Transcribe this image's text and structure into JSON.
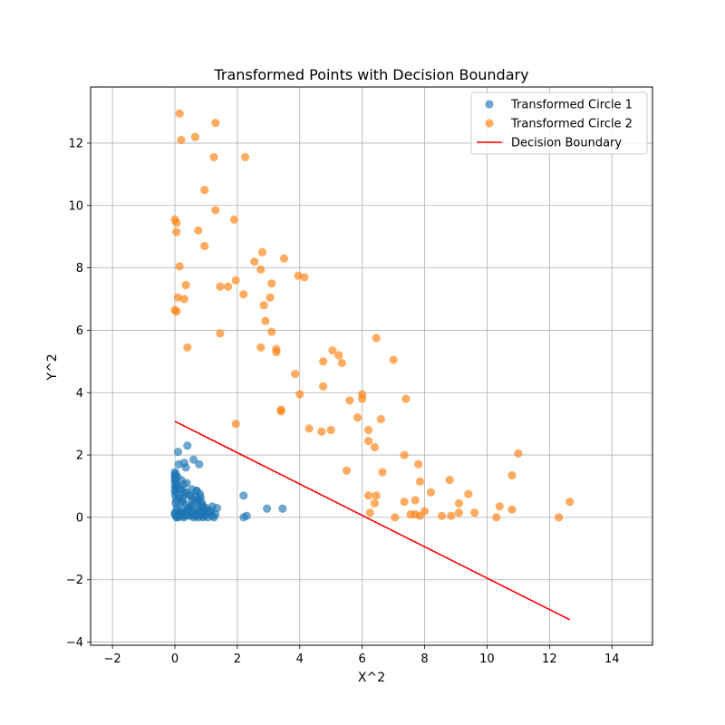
{
  "chart_data": {
    "type": "scatter",
    "title": "Transformed Points with Decision Boundary",
    "xlabel": "X^2",
    "ylabel": "Y^2",
    "xlim": [
      -2.7,
      15.3
    ],
    "ylim": [
      -4.1,
      13.8
    ],
    "xticks": [
      -2,
      0,
      2,
      4,
      6,
      8,
      10,
      12,
      14
    ],
    "yticks": [
      -4,
      -2,
      0,
      2,
      4,
      6,
      8,
      10,
      12
    ],
    "grid": true,
    "legend_position": "top-right",
    "series": [
      {
        "name": "Transformed Circle 1",
        "kind": "scatter",
        "color": "#1f77b4",
        "x": [
          0.0,
          0.0,
          0.02,
          0.0,
          0.03,
          0.05,
          0.0,
          0.01,
          0.04,
          0.02,
          0.06,
          0.08,
          0.0,
          0.03,
          0.05,
          0.1,
          0.12,
          0.15,
          0.18,
          0.2,
          0.22,
          0.25,
          0.28,
          0.3,
          0.33,
          0.35,
          0.38,
          0.4,
          0.42,
          0.45,
          0.48,
          0.5,
          0.55,
          0.6,
          0.62,
          0.65,
          0.7,
          0.72,
          0.75,
          0.8,
          0.82,
          0.85,
          0.9,
          0.92,
          0.95,
          1.0,
          1.05,
          1.1,
          1.15,
          1.2,
          1.25,
          1.3,
          1.35,
          0.15,
          0.2,
          0.25,
          0.3,
          0.35,
          0.4,
          0.45,
          0.5,
          0.55,
          0.6,
          0.65,
          0.7,
          0.75,
          0.8,
          0.85,
          0.9,
          0.95,
          1.0,
          0.1,
          0.12,
          0.08,
          0.05,
          0.02,
          0.3,
          0.35,
          0.28,
          0.4,
          0.6,
          0.7,
          0.75,
          0.78,
          0.82,
          0.88,
          0.15,
          0.2,
          0.48,
          0.55,
          0.38,
          0.65,
          0.8,
          0.25,
          0.1,
          0.45,
          0.18,
          0.3,
          0.5,
          0.7,
          0.9,
          1.1,
          1.2,
          2.2,
          2.3,
          2.2,
          2.95,
          3.45,
          0.02,
          0.0,
          0.01,
          0.0,
          0.03,
          0.0
        ],
        "y": [
          1.45,
          1.35,
          1.25,
          1.15,
          1.05,
          0.95,
          0.85,
          0.7,
          0.55,
          0.45,
          0.3,
          0.2,
          0.1,
          0.05,
          0.0,
          0.0,
          0.05,
          0.1,
          0.15,
          0.2,
          0.05,
          0.1,
          0.0,
          0.15,
          0.1,
          0.05,
          0.2,
          0.25,
          0.15,
          0.1,
          0.05,
          0.2,
          0.1,
          0.0,
          0.15,
          0.05,
          0.1,
          0.2,
          0.0,
          0.05,
          0.15,
          0.1,
          0.0,
          0.2,
          0.05,
          0.1,
          0.0,
          0.15,
          0.2,
          0.05,
          0.0,
          0.1,
          0.3,
          0.6,
          0.9,
          0.5,
          0.75,
          0.4,
          0.8,
          0.3,
          0.7,
          0.55,
          0.45,
          0.65,
          0.85,
          0.6,
          0.75,
          0.5,
          0.35,
          0.25,
          0.3,
          2.1,
          1.7,
          1.3,
          1.0,
          0.8,
          1.75,
          1.6,
          1.05,
          2.3,
          1.85,
          0.85,
          0.55,
          1.7,
          0.65,
          0.4,
          0.95,
          1.2,
          0.7,
          0.9,
          1.1,
          0.5,
          0.35,
          0.6,
          0.7,
          0.3,
          0.45,
          0.8,
          0.35,
          0.25,
          0.3,
          0.2,
          0.35,
          0.7,
          0.05,
          0.0,
          0.28,
          0.28,
          1.4,
          1.3,
          1.2,
          1.0,
          0.9,
          0.15
        ]
      },
      {
        "name": "Transformed Circle 2",
        "kind": "scatter",
        "color": "#ff7f0e",
        "x": [
          0.15,
          0.2,
          0.65,
          1.3,
          1.25,
          2.25,
          0.95,
          1.3,
          0.0,
          0.05,
          0.75,
          0.95,
          1.9,
          2.8,
          0.05,
          0.15,
          2.55,
          2.75,
          3.5,
          0.35,
          1.45,
          1.7,
          1.95,
          3.1,
          0.1,
          0.3,
          2.2,
          3.05,
          2.85,
          0.0,
          0.05,
          2.9,
          3.1,
          2.75,
          3.25,
          3.25,
          0.4,
          1.45,
          5.05,
          5.25,
          5.35,
          6.45,
          7.0,
          4.75,
          4.75,
          3.85,
          4.0,
          6.0,
          5.6,
          6.0,
          7.4,
          1.95,
          3.4,
          3.4,
          5.85,
          6.6,
          4.3,
          4.7,
          5.0,
          6.2,
          6.2,
          6.4,
          7.35,
          11.0,
          7.8,
          5.5,
          6.65,
          7.85,
          10.8,
          8.8,
          6.2,
          6.45,
          6.4,
          9.4,
          8.2,
          7.35,
          7.7,
          9.1,
          10.4,
          10.8,
          12.65,
          7.7,
          7.85,
          8.0,
          9.6,
          6.25,
          8.85,
          9.1,
          7.55,
          8.55,
          7.05,
          10.3,
          12.3,
          3.95,
          4.15
        ],
        "y": [
          12.95,
          12.1,
          12.2,
          12.65,
          11.55,
          11.55,
          10.5,
          9.85,
          9.55,
          9.45,
          9.2,
          8.7,
          9.55,
          8.5,
          9.15,
          8.05,
          8.2,
          7.95,
          8.3,
          7.45,
          7.4,
          7.4,
          7.6,
          7.5,
          7.05,
          7.0,
          7.15,
          7.05,
          6.8,
          6.65,
          6.6,
          6.3,
          5.95,
          5.45,
          5.4,
          5.3,
          5.45,
          5.9,
          5.35,
          5.2,
          4.95,
          5.75,
          5.05,
          4.2,
          5.0,
          4.6,
          3.95,
          3.95,
          3.75,
          3.8,
          3.8,
          3.0,
          3.45,
          3.4,
          3.2,
          3.15,
          2.85,
          2.75,
          2.8,
          2.8,
          2.45,
          2.25,
          2.0,
          2.05,
          1.7,
          1.5,
          1.45,
          1.15,
          1.35,
          1.2,
          0.7,
          0.7,
          0.45,
          0.75,
          0.8,
          0.5,
          0.55,
          0.45,
          0.35,
          0.25,
          0.5,
          0.1,
          0.05,
          0.2,
          0.15,
          0.15,
          0.05,
          0.15,
          0.1,
          0.05,
          0.0,
          0.0,
          0.0,
          7.75,
          7.7
        ]
      },
      {
        "name": "Decision Boundary",
        "kind": "line",
        "color": "#ff0000",
        "x": [
          0.0,
          12.65
        ],
        "y": [
          3.08,
          -3.28
        ]
      }
    ]
  }
}
